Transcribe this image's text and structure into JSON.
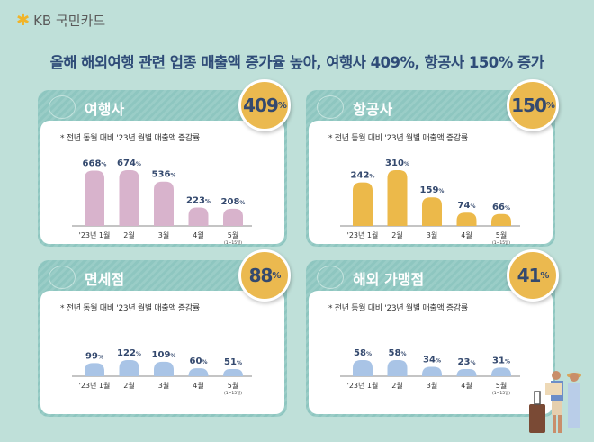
{
  "logo": {
    "text": "KB 국민카드"
  },
  "headline": "올해 해외여행 관련 업종 매출액 증가율 높아, 여행사 409%, 항공사 150% 증가",
  "note": "* 전년 동월 대비 '23년 월별 매출액 증감률",
  "colors": {
    "background": "#bfe0d9",
    "badge": "#ebb94f",
    "text": "#34496e"
  },
  "chart_data": [
    {
      "type": "bar",
      "title": "여행사",
      "total": "409",
      "unit": "%",
      "color": "#d8b3cc",
      "categories": [
        "'23년 1월",
        "2월",
        "3월",
        "4월",
        "5월"
      ],
      "subcategory": "(1~15일)",
      "values": [
        668,
        674,
        536,
        223,
        208
      ]
    },
    {
      "type": "bar",
      "title": "항공사",
      "total": "150",
      "unit": "%",
      "color": "#ecb94a",
      "categories": [
        "'23년 1월",
        "2월",
        "3월",
        "4월",
        "5월"
      ],
      "subcategory": "(1~15일)",
      "values": [
        242,
        310,
        159,
        74,
        66
      ]
    },
    {
      "type": "bar",
      "title": "면세점",
      "total": "88",
      "unit": "%",
      "color": "#a9c4e6",
      "categories": [
        "'23년 1월",
        "2월",
        "3월",
        "4월",
        "5월"
      ],
      "subcategory": "(1~15일)",
      "values": [
        99,
        122,
        109,
        60,
        51
      ]
    },
    {
      "type": "bar",
      "title": "해외 가맹점",
      "total": "41",
      "unit": "%",
      "color": "#a9c4e6",
      "categories": [
        "'23년 1월",
        "2월",
        "3월",
        "4월",
        "5월"
      ],
      "subcategory": "(1~15일)",
      "values": [
        58,
        58,
        34,
        23,
        31
      ]
    }
  ]
}
